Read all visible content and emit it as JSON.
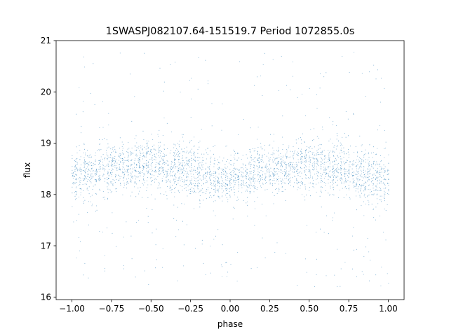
{
  "chart_data": {
    "type": "scatter",
    "title": "1SWASPJ082107.64-151519.7 Period 1072855.0s",
    "xlabel": "phase",
    "ylabel": "flux",
    "xlim": [
      -1.1,
      1.1
    ],
    "ylim": [
      15.95,
      21.0
    ],
    "grid": false,
    "legend": "none",
    "point_color": "#1f77b4",
    "xticks": [
      -1.0,
      -0.75,
      -0.5,
      -0.25,
      0.0,
      0.25,
      0.5,
      0.75,
      1.0
    ],
    "xtick_labels": [
      "−1.00",
      "−0.75",
      "−0.50",
      "−0.25",
      "0.00",
      "0.25",
      "0.50",
      "0.75",
      "1.00"
    ],
    "yticks": [
      16,
      17,
      18,
      19,
      20,
      21
    ],
    "ytick_labels": [
      "16",
      "17",
      "18",
      "19",
      "20",
      "21"
    ],
    "series_profile": {
      "phase_range": [
        -1.0,
        1.0
      ],
      "mean_flux_by_phase": [
        {
          "phase": -1.0,
          "flux": 18.35
        },
        {
          "phase": -0.75,
          "flux": 18.5
        },
        {
          "phase": -0.5,
          "flux": 18.6
        },
        {
          "phase": -0.25,
          "flux": 18.45
        },
        {
          "phase": -0.1,
          "flux": 18.3
        },
        {
          "phase": 0.0,
          "flux": 18.3
        },
        {
          "phase": 0.25,
          "flux": 18.5
        },
        {
          "phase": 0.5,
          "flux": 18.6
        },
        {
          "phase": 0.75,
          "flux": 18.45
        },
        {
          "phase": 0.9,
          "flux": 18.3
        },
        {
          "phase": 1.0,
          "flux": 18.3
        }
      ],
      "core_spread_flux": 0.55,
      "outlier_flux_range": [
        16.2,
        20.8
      ]
    }
  }
}
